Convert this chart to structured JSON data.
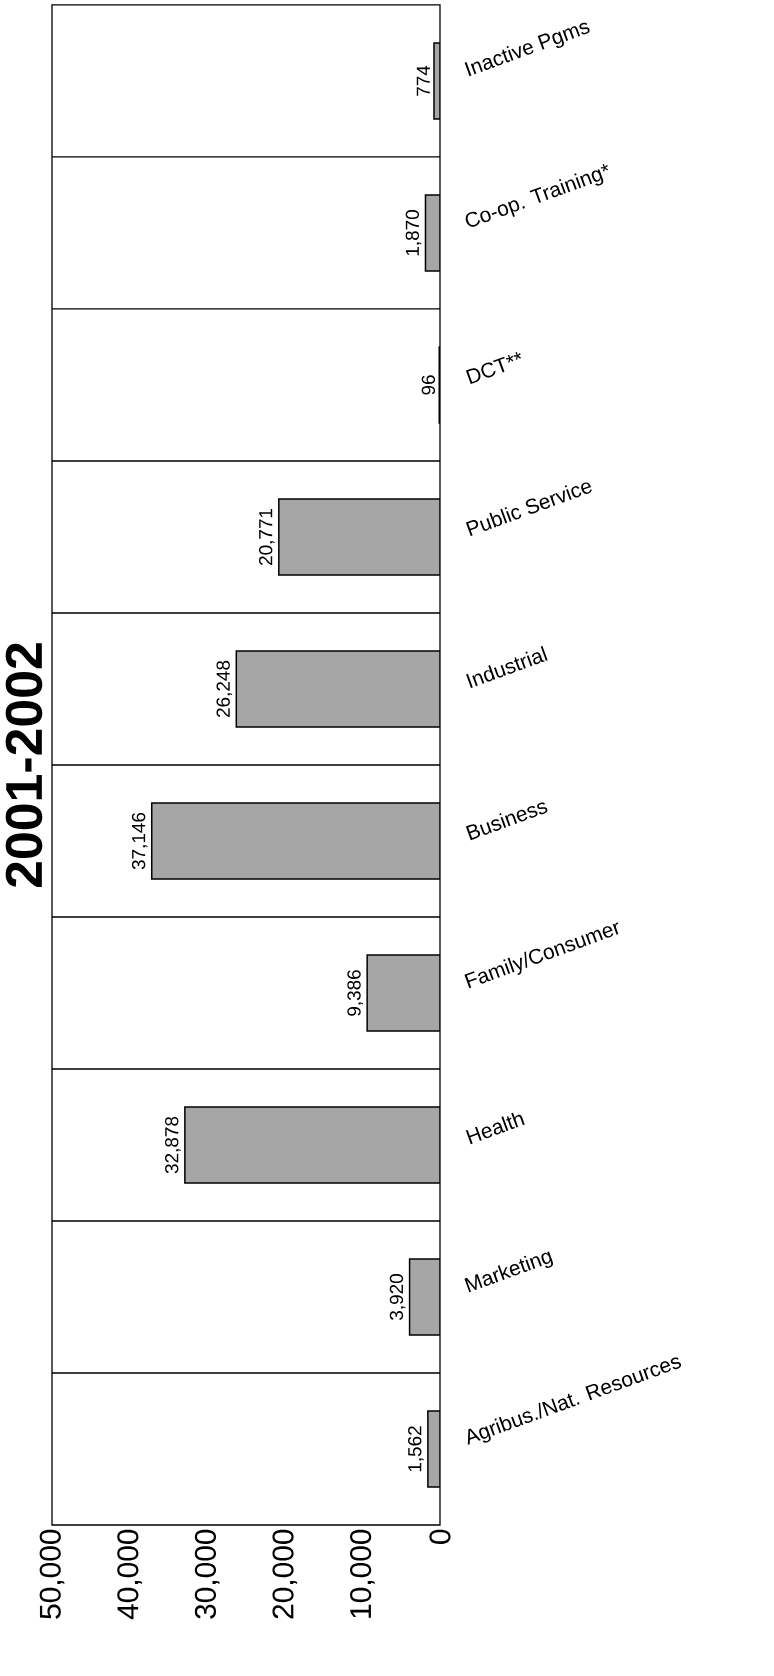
{
  "chart_data": {
    "type": "bar",
    "orientation": "horizontal",
    "title": "2001-2002",
    "categories": [
      "Inactive Pgms",
      "Co-op. Training*",
      "DCT**",
      "Public Service",
      "Industrial",
      "Business",
      "Family/Consumer",
      "Health",
      "Marketing",
      "Agribus./Nat. Resources"
    ],
    "values": [
      774,
      1870,
      96,
      20771,
      26248,
      37146,
      9386,
      32878,
      3920,
      1562
    ],
    "value_labels": [
      "774",
      "1,870",
      "96",
      "20,771",
      "26,248",
      "37,146",
      "9,386",
      "32,878",
      "3,920",
      "1,562"
    ],
    "color": "#a6a6a6",
    "xlim": [
      50000,
      0
    ],
    "xticks": [
      {
        "value": 50000,
        "label": "50,000"
      },
      {
        "value": 40000,
        "label": "40,000"
      },
      {
        "value": 30000,
        "label": "30,000"
      },
      {
        "value": 20000,
        "label": "20,000"
      },
      {
        "value": 10000,
        "label": "10,000"
      },
      0
    ],
    "grid": "y"
  }
}
